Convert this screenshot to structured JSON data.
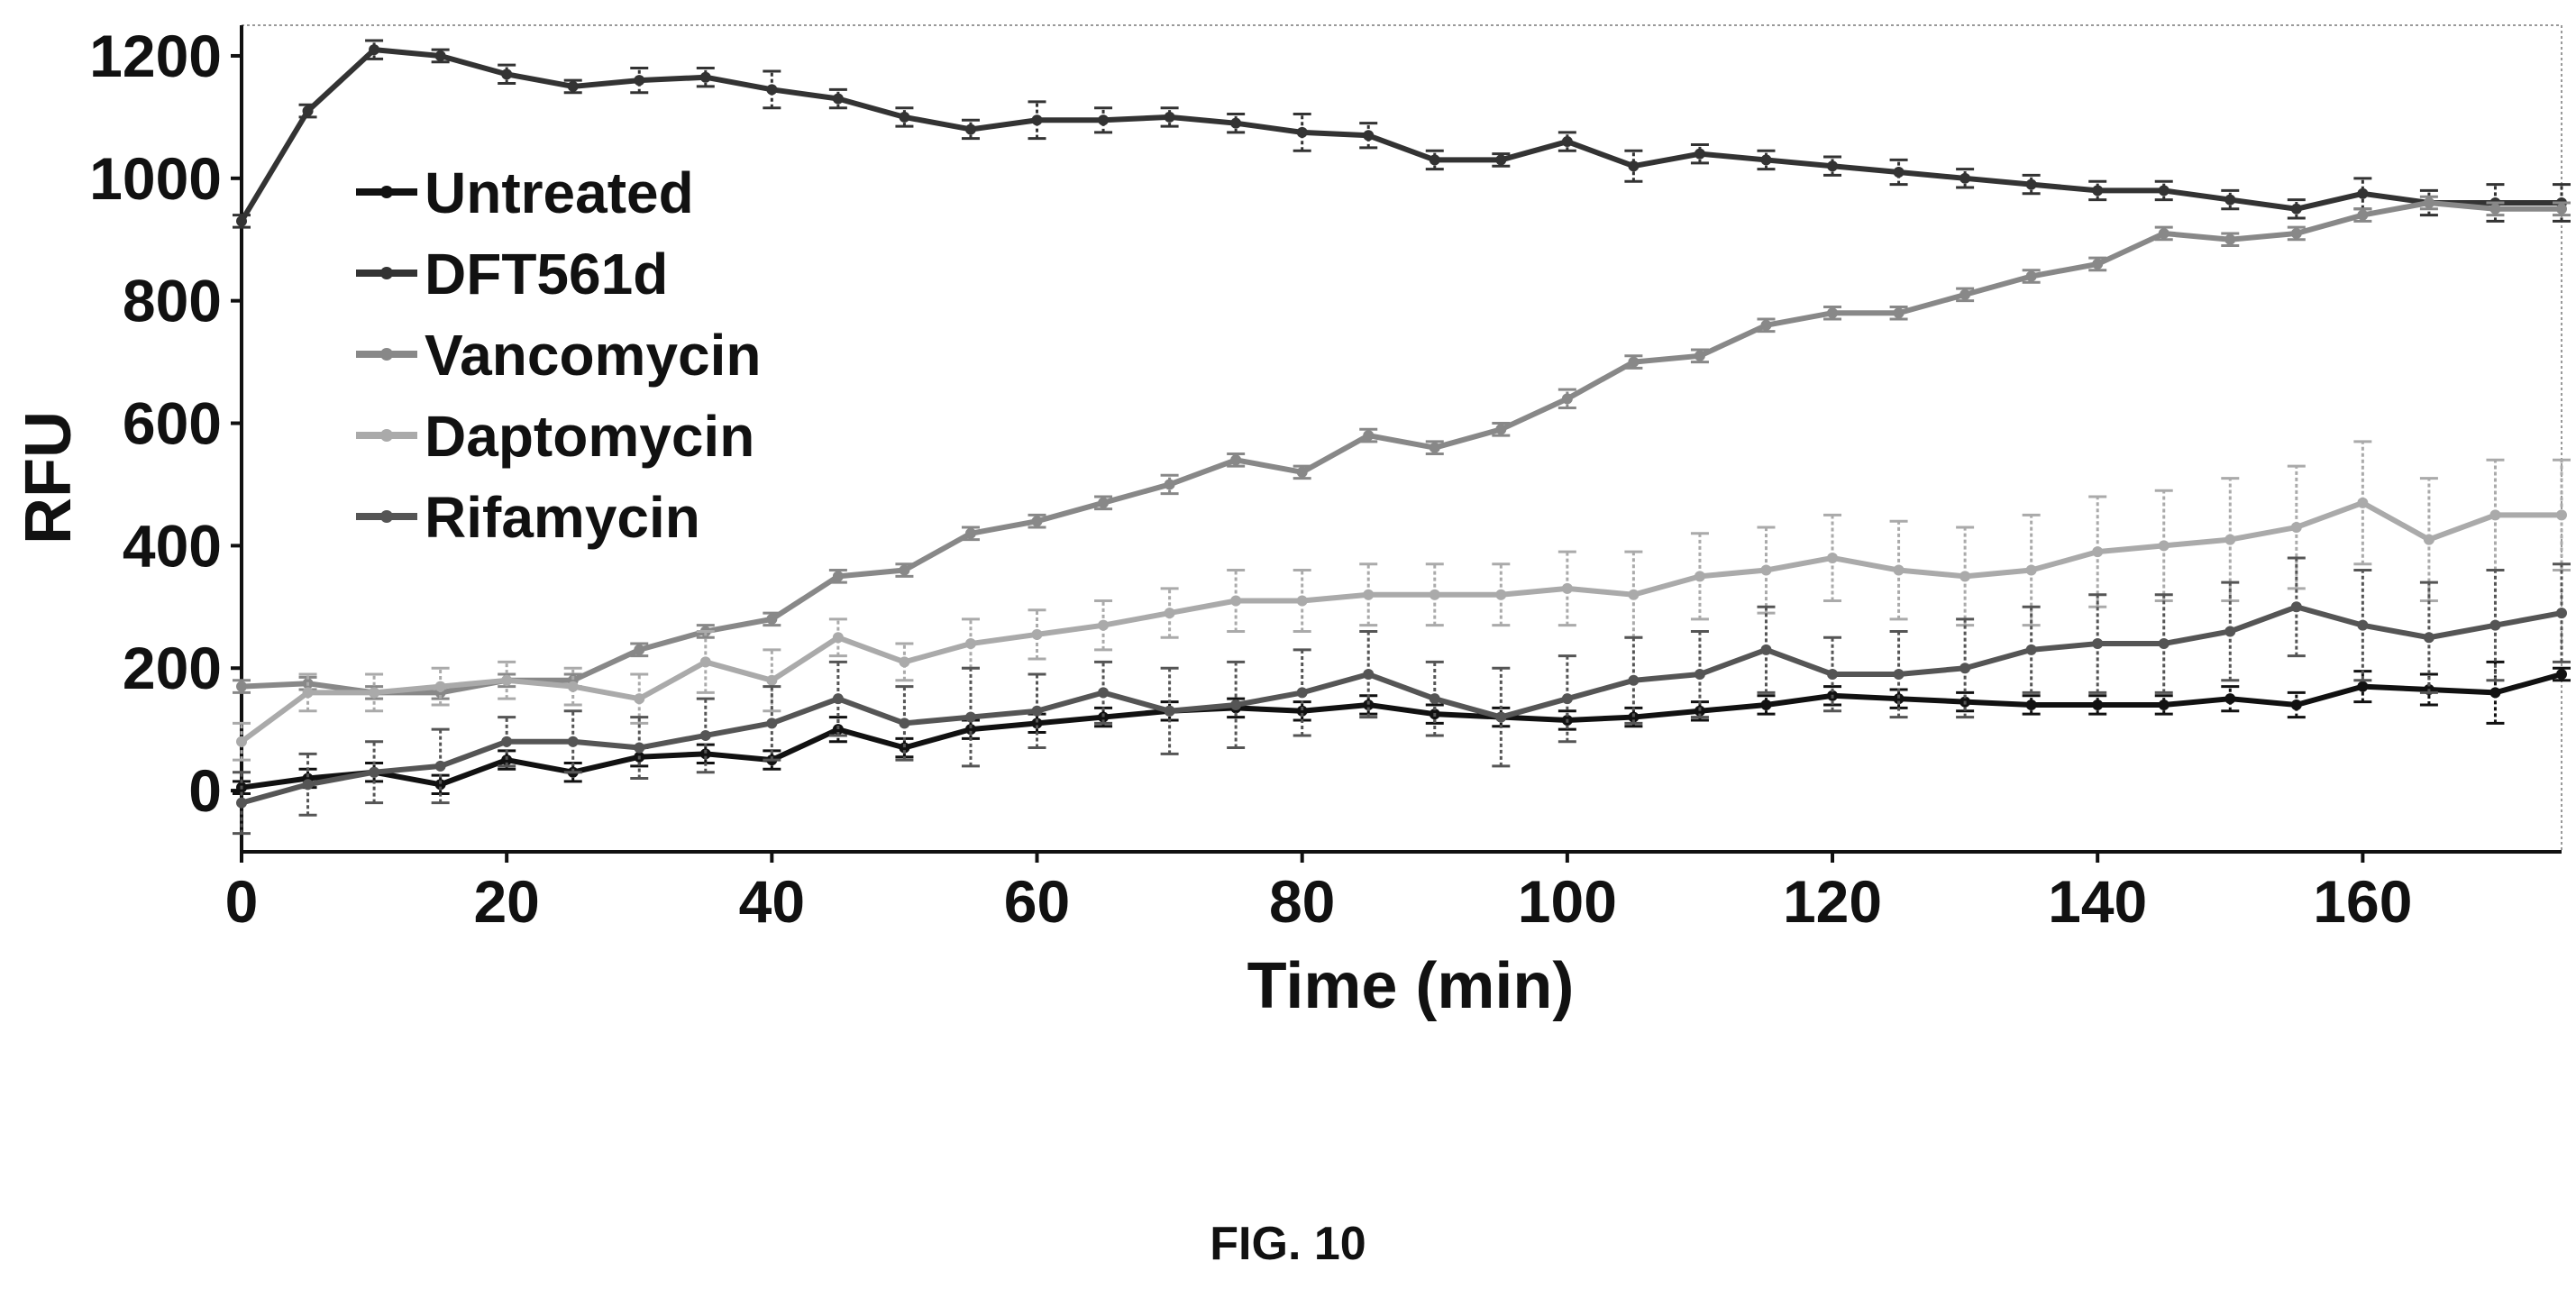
{
  "figure_caption": "FIG. 10",
  "chart_data": {
    "type": "line",
    "title": "",
    "xlabel": "Time (min)",
    "ylabel": "RFU",
    "xlim": [
      0,
      175
    ],
    "ylim": [
      -100,
      1250
    ],
    "xticks": [
      0,
      20,
      40,
      60,
      80,
      100,
      120,
      140,
      160
    ],
    "yticks": [
      0,
      200,
      400,
      600,
      800,
      1000,
      1200
    ],
    "grid": false,
    "legend_position": "upper-left",
    "x": [
      0,
      5,
      10,
      15,
      20,
      25,
      30,
      35,
      40,
      45,
      50,
      55,
      60,
      65,
      70,
      75,
      80,
      85,
      90,
      95,
      100,
      105,
      110,
      115,
      120,
      125,
      130,
      135,
      140,
      145,
      150,
      155,
      160,
      165,
      170,
      175
    ],
    "series": [
      {
        "name": "Untreated",
        "color": "#111111",
        "values": [
          5,
          20,
          30,
          10,
          50,
          30,
          55,
          60,
          50,
          100,
          70,
          100,
          110,
          120,
          130,
          135,
          130,
          140,
          125,
          120,
          115,
          120,
          130,
          140,
          155,
          150,
          145,
          140,
          140,
          140,
          150,
          140,
          170,
          165,
          160,
          190
        ],
        "errors": [
          10,
          15,
          15,
          15,
          15,
          15,
          15,
          15,
          15,
          20,
          15,
          15,
          15,
          15,
          15,
          15,
          15,
          15,
          15,
          15,
          15,
          15,
          15,
          15,
          15,
          15,
          15,
          15,
          15,
          15,
          20,
          20,
          25,
          25,
          50,
          10
        ]
      },
      {
        "name": "DFT561d",
        "color": "#333333",
        "values": [
          930,
          1110,
          1210,
          1200,
          1170,
          1150,
          1160,
          1165,
          1145,
          1130,
          1100,
          1080,
          1095,
          1095,
          1100,
          1090,
          1075,
          1070,
          1030,
          1030,
          1060,
          1020,
          1040,
          1030,
          1020,
          1010,
          1000,
          990,
          980,
          980,
          965,
          950,
          975,
          960,
          960,
          960
        ],
        "errors": [
          10,
          10,
          15,
          10,
          15,
          10,
          20,
          15,
          30,
          15,
          15,
          15,
          30,
          20,
          15,
          15,
          30,
          20,
          15,
          10,
          15,
          25,
          15,
          15,
          15,
          20,
          15,
          15,
          15,
          15,
          15,
          15,
          25,
          20,
          30,
          30
        ]
      },
      {
        "name": "Vancomycin",
        "color": "#888888",
        "values": [
          170,
          175,
          160,
          160,
          180,
          180,
          230,
          260,
          280,
          350,
          360,
          420,
          440,
          470,
          500,
          540,
          520,
          580,
          560,
          590,
          640,
          700,
          710,
          760,
          780,
          780,
          810,
          840,
          860,
          910,
          900,
          910,
          940,
          960,
          950,
          950
        ],
        "errors": [
          10,
          10,
          10,
          10,
          10,
          10,
          10,
          10,
          10,
          10,
          10,
          10,
          10,
          10,
          15,
          10,
          10,
          10,
          10,
          10,
          15,
          10,
          10,
          10,
          10,
          10,
          10,
          10,
          10,
          10,
          10,
          10,
          10,
          10,
          10,
          10
        ]
      },
      {
        "name": "Daptomycin",
        "color": "#aaaaaa",
        "values": [
          80,
          160,
          160,
          170,
          180,
          170,
          150,
          210,
          180,
          250,
          210,
          240,
          255,
          270,
          290,
          310,
          310,
          320,
          320,
          320,
          330,
          320,
          350,
          360,
          380,
          360,
          350,
          360,
          390,
          400,
          410,
          430,
          470,
          410,
          450,
          450
        ],
        "errors": [
          30,
          30,
          30,
          30,
          30,
          30,
          40,
          50,
          50,
          30,
          30,
          40,
          40,
          40,
          40,
          50,
          50,
          50,
          50,
          50,
          60,
          70,
          70,
          70,
          70,
          80,
          80,
          90,
          90,
          90,
          100,
          100,
          100,
          100,
          90,
          90
        ]
      },
      {
        "name": "Rifamycin",
        "color": "#555555",
        "values": [
          -20,
          10,
          30,
          40,
          80,
          80,
          70,
          90,
          110,
          150,
          110,
          120,
          130,
          160,
          130,
          140,
          160,
          190,
          150,
          120,
          150,
          180,
          190,
          230,
          190,
          190,
          200,
          230,
          240,
          240,
          260,
          300,
          270,
          250,
          270,
          290
        ],
        "errors": [
          50,
          50,
          50,
          60,
          40,
          50,
          50,
          60,
          60,
          60,
          60,
          80,
          60,
          50,
          70,
          70,
          70,
          70,
          60,
          80,
          70,
          70,
          70,
          70,
          60,
          70,
          80,
          70,
          80,
          80,
          80,
          80,
          90,
          90,
          90,
          80
        ]
      }
    ]
  }
}
